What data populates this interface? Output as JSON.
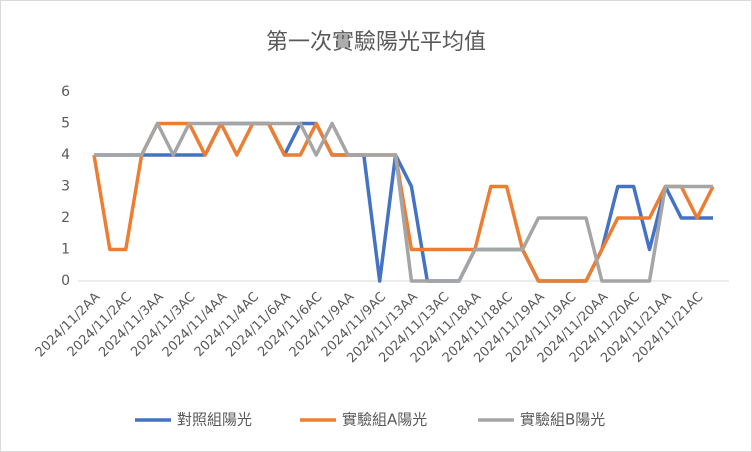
{
  "chart_data": {
    "type": "line",
    "title": "第一次實驗陽光平均值",
    "categories": [
      "2024/11/2AA",
      null,
      "2024/11/2AC",
      null,
      "2024/11/3AA",
      null,
      "2024/11/3AC",
      null,
      "2024/11/4AA",
      null,
      "2024/11/4AC",
      null,
      "2024/11/6AA",
      null,
      "2024/11/6AC",
      null,
      "2024/11/9AA",
      null,
      "2024/11/9AC",
      null,
      "2024/11/13AA",
      null,
      "2024/11/13AC",
      null,
      "2024/11/18AA",
      null,
      "2024/11/18AC",
      null,
      "2024/11/19AA",
      null,
      "2024/11/19AC",
      null,
      "2024/11/20AA",
      null,
      "2024/11/20AC",
      null,
      "2024/11/21AA",
      null,
      "2024/11/21AC",
      null
    ],
    "series": [
      {
        "name": "對照組陽光",
        "color": "#4472c4",
        "values": [
          4,
          4,
          4,
          4,
          4,
          4,
          4,
          4,
          5,
          5,
          5,
          5,
          4,
          5,
          5,
          4,
          4,
          4,
          0,
          4,
          3,
          0,
          0,
          0,
          1,
          1,
          1,
          1,
          0,
          0,
          0,
          0,
          1,
          3,
          3,
          1,
          3,
          2,
          2,
          2
        ]
      },
      {
        "name": "實驗組A陽光",
        "color": "#ed7d31",
        "values": [
          4,
          1,
          1,
          4,
          5,
          5,
          5,
          4,
          5,
          4,
          5,
          5,
          4,
          4,
          5,
          4,
          4,
          4,
          4,
          4,
          1,
          1,
          1,
          1,
          1,
          3,
          3,
          1,
          0,
          0,
          0,
          0,
          1,
          2,
          2,
          2,
          3,
          3,
          2,
          3
        ]
      },
      {
        "name": "實驗組B陽光",
        "color": "#a5a5a5",
        "values": [
          4,
          4,
          4,
          4,
          5,
          4,
          5,
          5,
          5,
          5,
          5,
          5,
          5,
          5,
          4,
          5,
          4,
          4,
          4,
          4,
          0,
          0,
          0,
          0,
          1,
          1,
          1,
          1,
          2,
          2,
          2,
          2,
          0,
          0,
          0,
          0,
          3,
          3,
          3,
          3
        ]
      }
    ],
    "ylim": [
      0,
      6
    ],
    "yticks": [
      0,
      1,
      2,
      3,
      4,
      5,
      6
    ],
    "grid": false,
    "legend": "bottom"
  }
}
